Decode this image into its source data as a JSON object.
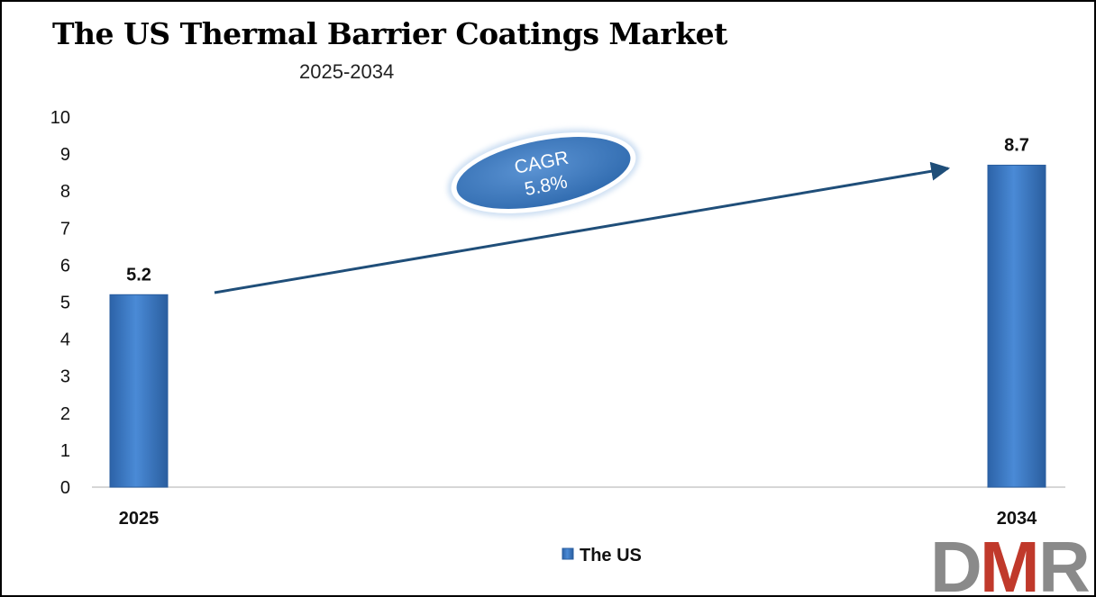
{
  "chart_data": {
    "type": "bar",
    "title": "The US Thermal Barrier Coatings Market",
    "subtitle": "2025-2034",
    "categories": [
      "2025",
      "2034"
    ],
    "series": [
      {
        "name": "The US",
        "values": [
          5.2,
          8.7
        ],
        "color": "#3a78c2"
      }
    ],
    "data_labels": [
      "5.2",
      "8.7"
    ],
    "ylim": [
      0,
      10
    ],
    "y_ticks": [
      0,
      1,
      2,
      3,
      4,
      5,
      6,
      7,
      8,
      9,
      10
    ],
    "grid": false,
    "legend_position": "bottom"
  },
  "annotation": {
    "label": "CAGR",
    "value": "5.8%",
    "color": "#3a78c2"
  },
  "logo": {
    "text": "DMR",
    "colors": [
      "#8a8a8a",
      "#c0392b",
      "#8a8a8a"
    ]
  }
}
